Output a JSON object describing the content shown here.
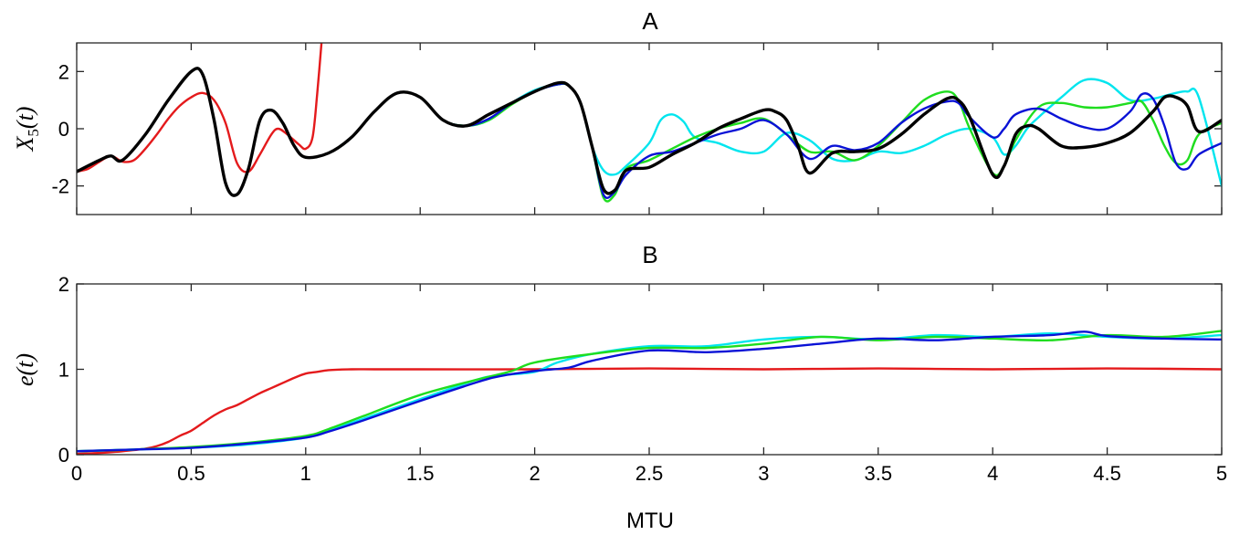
{
  "chart_data": [
    {
      "type": "line",
      "title": "A",
      "ylabel_main": "X",
      "ylabel_sub": "5",
      "ylabel_arg": "(t)",
      "xlim": [
        0,
        5
      ],
      "ylim": [
        -3,
        3
      ],
      "yticks": [
        -2,
        0,
        2
      ],
      "ytick_labels": [
        "-2",
        "0",
        "2"
      ],
      "xticks": [
        0,
        0.5,
        1,
        1.5,
        2,
        2.5,
        3,
        3.5,
        4,
        4.5,
        5
      ],
      "show_xtick_labels": false,
      "grid": false,
      "series": [
        {
          "color": "#e41a1c",
          "x": [
            0,
            0.05,
            0.1,
            0.15,
            0.2,
            0.25,
            0.3,
            0.35,
            0.4,
            0.45,
            0.5,
            0.55,
            0.6,
            0.65,
            0.7,
            0.75,
            0.8,
            0.85,
            0.88,
            0.92,
            0.97,
            1.0,
            1.03,
            1.05,
            1.07
          ],
          "y": [
            -1.5,
            -1.4,
            -1.15,
            -0.95,
            -1.15,
            -1.1,
            -0.7,
            -0.2,
            0.35,
            0.8,
            1.1,
            1.25,
            1.0,
            0.2,
            -1.2,
            -1.5,
            -0.9,
            -0.2,
            0.0,
            -0.2,
            -0.55,
            -0.7,
            -0.3,
            1.2,
            3.1
          ]
        },
        {
          "color": "#00e5ee",
          "x": [
            0,
            0.1,
            0.15,
            0.2,
            0.3,
            0.4,
            0.5,
            0.55,
            0.6,
            0.65,
            0.7,
            0.75,
            0.8,
            0.85,
            0.9,
            0.95,
            1.0,
            1.1,
            1.2,
            1.3,
            1.4,
            1.5,
            1.6,
            1.7,
            1.8,
            1.9,
            2.0,
            2.1,
            2.15,
            2.2,
            2.25,
            2.3,
            2.35,
            2.4,
            2.5,
            2.55,
            2.6,
            2.65,
            2.7,
            2.8,
            2.9,
            3.0,
            3.1,
            3.2,
            3.3,
            3.4,
            3.5,
            3.6,
            3.7,
            3.8,
            3.9,
            4.0,
            4.05,
            4.1,
            4.15,
            4.2,
            4.3,
            4.4,
            4.5,
            4.6,
            4.7,
            4.8,
            4.85,
            4.9,
            5.0
          ],
          "y": [
            -1.5,
            -1.1,
            -0.95,
            -1.1,
            -0.2,
            1.0,
            2.0,
            1.9,
            0.3,
            -1.9,
            -2.3,
            -1.4,
            0.3,
            0.65,
            0.2,
            -0.6,
            -1.0,
            -0.85,
            -0.3,
            0.6,
            1.25,
            1.1,
            0.3,
            0.1,
            0.3,
            0.9,
            1.35,
            1.55,
            1.5,
            0.9,
            -0.6,
            -1.45,
            -1.6,
            -1.3,
            -0.5,
            0.3,
            0.5,
            0.25,
            -0.3,
            -0.5,
            -0.8,
            -0.8,
            -0.15,
            -0.4,
            -1.05,
            -1.1,
            -0.8,
            -0.85,
            -0.6,
            -0.2,
            0.0,
            -0.3,
            -0.9,
            -0.6,
            0.0,
            0.4,
            1.1,
            1.7,
            1.6,
            1.0,
            1.05,
            1.25,
            1.3,
            1.1,
            -2.0
          ]
        },
        {
          "color": "#1fdd1f",
          "x": [
            0,
            0.1,
            0.15,
            0.2,
            0.3,
            0.4,
            0.5,
            0.55,
            0.6,
            0.65,
            0.7,
            0.75,
            0.8,
            0.85,
            0.9,
            0.95,
            1.0,
            1.1,
            1.2,
            1.3,
            1.4,
            1.5,
            1.6,
            1.7,
            1.8,
            1.9,
            2.0,
            2.1,
            2.15,
            2.2,
            2.25,
            2.3,
            2.35,
            2.4,
            2.5,
            2.6,
            2.7,
            2.8,
            2.9,
            3.0,
            3.1,
            3.2,
            3.3,
            3.4,
            3.5,
            3.6,
            3.7,
            3.8,
            3.85,
            3.9,
            4.0,
            4.05,
            4.1,
            4.2,
            4.3,
            4.4,
            4.5,
            4.6,
            4.65,
            4.7,
            4.75,
            4.8,
            4.85,
            4.9,
            5.0
          ],
          "y": [
            -1.5,
            -1.1,
            -0.95,
            -1.1,
            -0.2,
            1.0,
            2.0,
            1.9,
            0.3,
            -1.9,
            -2.3,
            -1.4,
            0.3,
            0.65,
            0.2,
            -0.6,
            -1.0,
            -0.85,
            -0.3,
            0.6,
            1.25,
            1.1,
            0.3,
            0.1,
            0.3,
            0.85,
            1.3,
            1.55,
            1.5,
            0.9,
            -0.6,
            -2.4,
            -2.3,
            -1.4,
            -1.1,
            -0.7,
            -0.3,
            0.0,
            0.2,
            0.35,
            -0.2,
            -0.8,
            -0.8,
            -1.1,
            -0.6,
            0.2,
            1.0,
            1.3,
            1.0,
            0.0,
            -1.55,
            -1.3,
            -0.4,
            0.75,
            0.9,
            0.75,
            0.75,
            0.9,
            0.95,
            0.3,
            -0.6,
            -1.2,
            -1.1,
            -0.2,
            0.2
          ]
        },
        {
          "color": "#0a12d6",
          "x": [
            0,
            0.1,
            0.15,
            0.2,
            0.3,
            0.4,
            0.5,
            0.55,
            0.6,
            0.65,
            0.7,
            0.75,
            0.8,
            0.85,
            0.9,
            0.95,
            1.0,
            1.1,
            1.2,
            1.3,
            1.4,
            1.5,
            1.6,
            1.7,
            1.8,
            1.9,
            2.0,
            2.1,
            2.15,
            2.2,
            2.25,
            2.3,
            2.35,
            2.4,
            2.5,
            2.6,
            2.7,
            2.8,
            2.9,
            3.0,
            3.1,
            3.2,
            3.3,
            3.4,
            3.5,
            3.6,
            3.7,
            3.8,
            3.85,
            3.9,
            4.0,
            4.05,
            4.1,
            4.2,
            4.3,
            4.4,
            4.5,
            4.6,
            4.65,
            4.7,
            4.75,
            4.8,
            4.85,
            4.9,
            5.0
          ],
          "y": [
            -1.5,
            -1.1,
            -0.95,
            -1.1,
            -0.2,
            1.0,
            2.0,
            1.9,
            0.3,
            -1.9,
            -2.3,
            -1.4,
            0.3,
            0.65,
            0.2,
            -0.6,
            -1.0,
            -0.85,
            -0.3,
            0.6,
            1.25,
            1.1,
            0.3,
            0.1,
            0.35,
            0.9,
            1.3,
            1.55,
            1.5,
            0.9,
            -0.6,
            -2.3,
            -2.2,
            -1.6,
            -0.95,
            -0.8,
            -0.5,
            -0.2,
            0.0,
            0.3,
            -0.2,
            -1.05,
            -0.6,
            -0.75,
            -0.5,
            0.2,
            0.7,
            0.95,
            0.9,
            0.4,
            -0.3,
            0.0,
            0.5,
            0.7,
            0.35,
            0.05,
            0.0,
            0.6,
            1.2,
            1.05,
            0.1,
            -1.2,
            -1.4,
            -0.9,
            -0.5
          ]
        },
        {
          "color": "#000000",
          "x": [
            0,
            0.1,
            0.15,
            0.2,
            0.3,
            0.4,
            0.5,
            0.55,
            0.6,
            0.65,
            0.7,
            0.75,
            0.8,
            0.85,
            0.9,
            0.95,
            1.0,
            1.1,
            1.2,
            1.3,
            1.4,
            1.5,
            1.6,
            1.7,
            1.8,
            1.9,
            2.0,
            2.1,
            2.15,
            2.2,
            2.25,
            2.3,
            2.35,
            2.4,
            2.5,
            2.6,
            2.7,
            2.8,
            2.9,
            3.0,
            3.05,
            3.1,
            3.15,
            3.2,
            3.3,
            3.4,
            3.5,
            3.6,
            3.7,
            3.8,
            3.85,
            3.9,
            4.0,
            4.05,
            4.1,
            4.15,
            4.2,
            4.3,
            4.4,
            4.5,
            4.6,
            4.7,
            4.75,
            4.8,
            4.85,
            4.9,
            5.0
          ],
          "y": [
            -1.5,
            -1.1,
            -0.95,
            -1.1,
            -0.2,
            1.0,
            2.0,
            1.9,
            0.3,
            -1.9,
            -2.3,
            -1.4,
            0.3,
            0.65,
            0.2,
            -0.6,
            -1.0,
            -0.85,
            -0.3,
            0.6,
            1.25,
            1.1,
            0.3,
            0.1,
            0.5,
            0.9,
            1.3,
            1.6,
            1.5,
            0.9,
            -0.6,
            -2.1,
            -2.15,
            -1.45,
            -1.35,
            -0.9,
            -0.5,
            0.0,
            0.35,
            0.65,
            0.6,
            0.3,
            -0.6,
            -1.55,
            -0.85,
            -0.8,
            -0.7,
            -0.2,
            0.5,
            1.05,
            1.0,
            0.4,
            -1.6,
            -1.3,
            -0.2,
            0.1,
            0.0,
            -0.6,
            -0.65,
            -0.5,
            -0.15,
            0.6,
            1.1,
            1.1,
            0.8,
            -0.1,
            0.3
          ]
        }
      ]
    },
    {
      "type": "line",
      "title": "B",
      "xlabel": "MTU",
      "ylabel_main": "e",
      "ylabel_arg": "(t)",
      "xlim": [
        0,
        5
      ],
      "ylim": [
        0,
        2
      ],
      "yticks": [
        0,
        1,
        2
      ],
      "ytick_labels": [
        "0",
        "1",
        "2"
      ],
      "xticks": [
        0,
        0.5,
        1,
        1.5,
        2,
        2.5,
        3,
        3.5,
        4,
        4.5,
        5
      ],
      "xtick_labels": [
        "0",
        "0.5",
        "1",
        "1.5",
        "2",
        "2.5",
        "3",
        "3.5",
        "4",
        "4.5",
        "5"
      ],
      "grid": false,
      "series": [
        {
          "color": "#e41a1c",
          "x": [
            0,
            0.1,
            0.2,
            0.3,
            0.35,
            0.4,
            0.45,
            0.5,
            0.55,
            0.6,
            0.65,
            0.7,
            0.75,
            0.8,
            0.85,
            0.9,
            0.95,
            1.0,
            1.05,
            1.1,
            1.2,
            1.3,
            1.5,
            2.0,
            2.5,
            3.0,
            3.5,
            4.0,
            4.5,
            5.0
          ],
          "y": [
            0.01,
            0.02,
            0.04,
            0.07,
            0.1,
            0.15,
            0.22,
            0.28,
            0.37,
            0.46,
            0.53,
            0.58,
            0.65,
            0.72,
            0.78,
            0.84,
            0.9,
            0.95,
            0.97,
            0.99,
            1.0,
            1.0,
            1.0,
            1.0,
            1.01,
            1.0,
            1.01,
            1.0,
            1.01,
            1.0
          ]
        },
        {
          "color": "#00e5ee",
          "x": [
            0,
            0.25,
            0.5,
            0.75,
            1.0,
            1.1,
            1.25,
            1.5,
            1.75,
            1.85,
            2.0,
            2.1,
            2.25,
            2.5,
            2.75,
            3.0,
            3.25,
            3.5,
            3.75,
            4.0,
            4.25,
            4.5,
            4.75,
            5.0
          ],
          "y": [
            0.04,
            0.06,
            0.08,
            0.12,
            0.2,
            0.28,
            0.42,
            0.65,
            0.88,
            0.93,
            0.97,
            1.08,
            1.18,
            1.27,
            1.27,
            1.35,
            1.38,
            1.35,
            1.4,
            1.38,
            1.42,
            1.38,
            1.36,
            1.4
          ]
        },
        {
          "color": "#1fdd1f",
          "x": [
            0,
            0.25,
            0.5,
            0.75,
            1.0,
            1.1,
            1.25,
            1.5,
            1.75,
            1.9,
            2.0,
            2.25,
            2.5,
            2.75,
            3.0,
            3.25,
            3.5,
            3.75,
            4.0,
            4.25,
            4.5,
            4.75,
            5.0
          ],
          "y": [
            0.04,
            0.06,
            0.09,
            0.14,
            0.22,
            0.3,
            0.45,
            0.7,
            0.88,
            0.98,
            1.08,
            1.18,
            1.25,
            1.25,
            1.3,
            1.38,
            1.34,
            1.38,
            1.36,
            1.34,
            1.4,
            1.38,
            1.45
          ]
        },
        {
          "color": "#0a12d6",
          "x": [
            0,
            0.25,
            0.5,
            0.75,
            1.0,
            1.1,
            1.25,
            1.5,
            1.75,
            1.85,
            2.0,
            2.15,
            2.25,
            2.5,
            2.75,
            3.0,
            3.25,
            3.5,
            3.75,
            4.0,
            4.25,
            4.4,
            4.5,
            4.75,
            5.0
          ],
          "y": [
            0.04,
            0.06,
            0.08,
            0.13,
            0.2,
            0.27,
            0.4,
            0.63,
            0.85,
            0.92,
            0.98,
            1.02,
            1.1,
            1.22,
            1.2,
            1.24,
            1.3,
            1.36,
            1.34,
            1.38,
            1.4,
            1.44,
            1.39,
            1.36,
            1.35
          ]
        }
      ]
    }
  ]
}
